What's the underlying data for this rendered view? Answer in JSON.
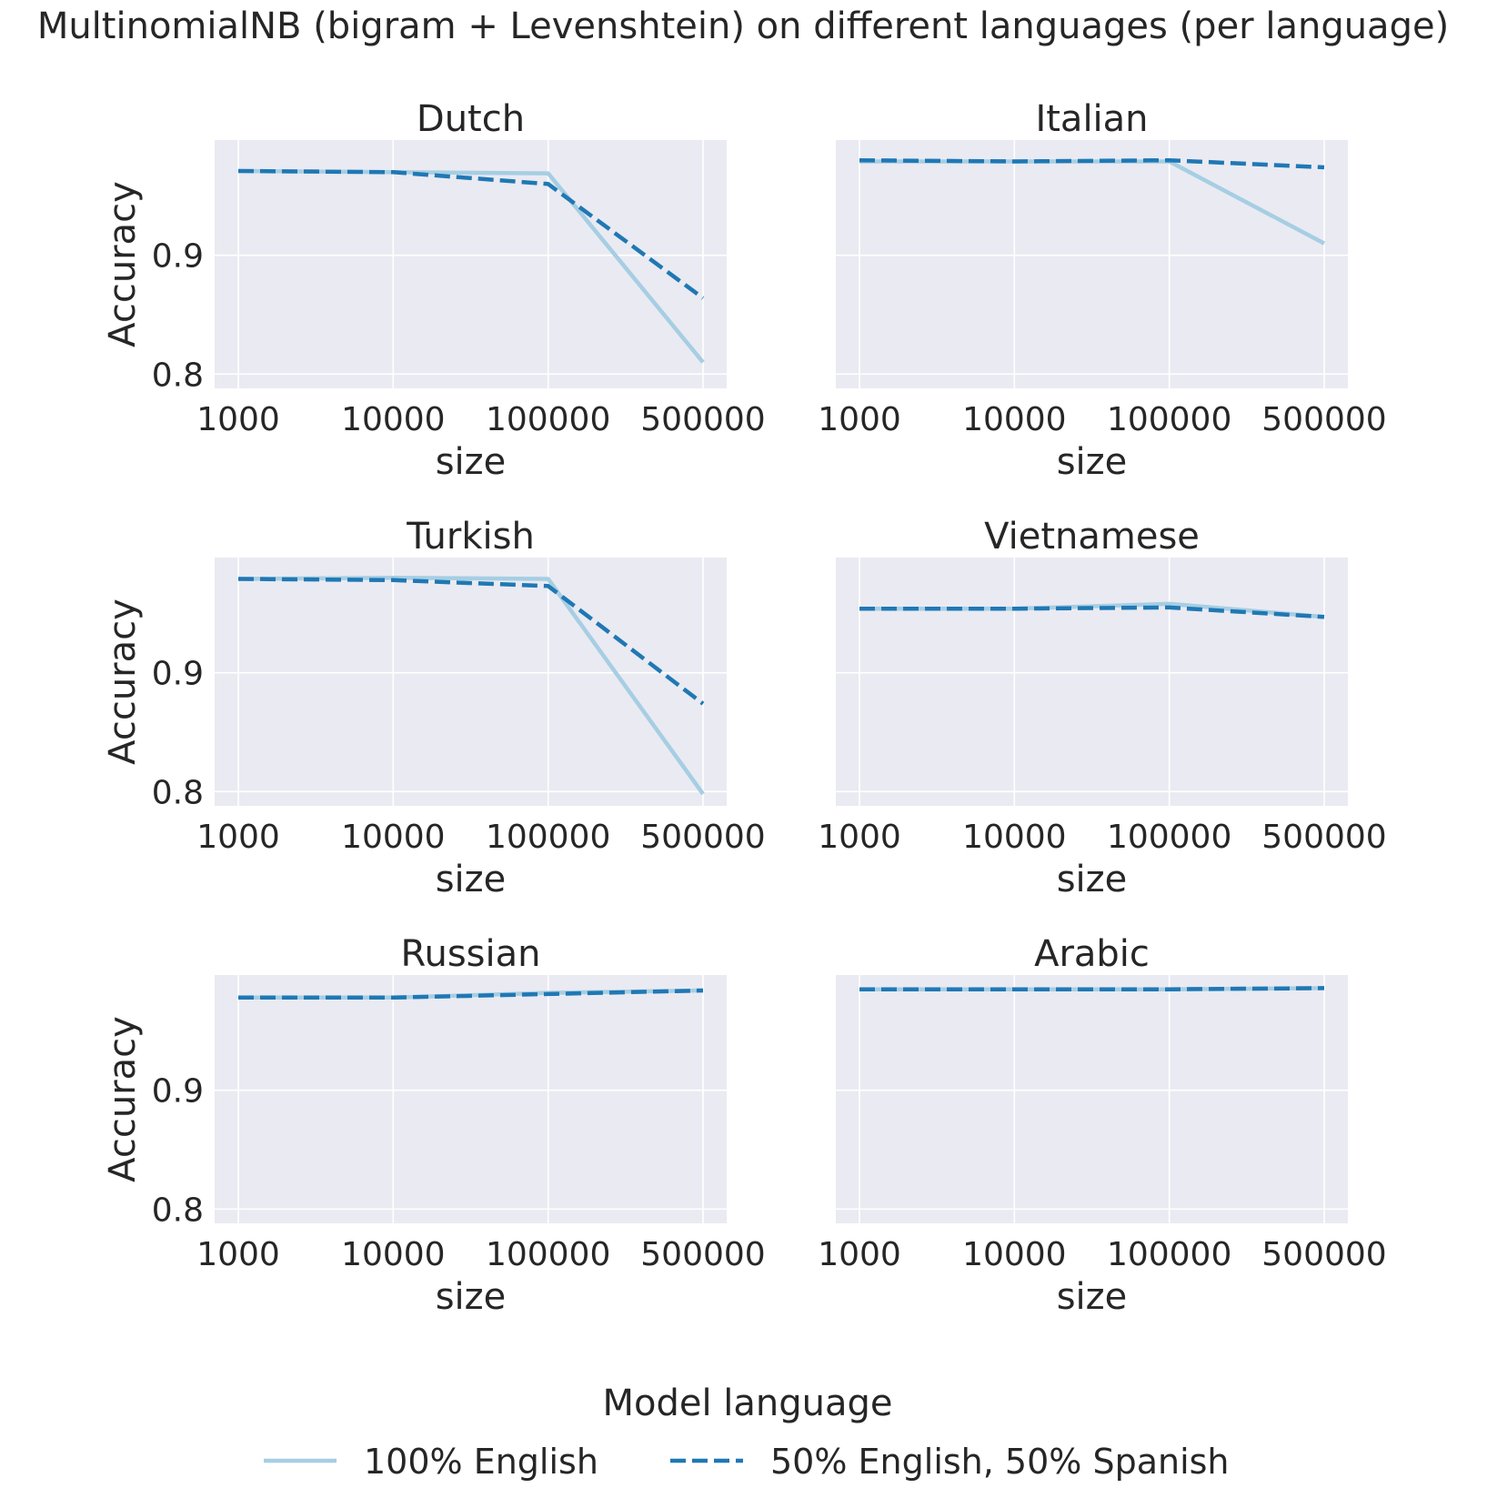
{
  "figure": {
    "title": "MultinomialNB (bigram + Levenshtein) on different languages (per language)",
    "legend_title": "Model language",
    "legend_position": "bottom-center",
    "series_styles": [
      {
        "name": "100% English",
        "color": "#a6cee3",
        "dash": "solid"
      },
      {
        "name": "50% English, 50% Spanish",
        "color": "#1f78b4",
        "dash": "dashed"
      }
    ],
    "background_color": "#eaeaf2",
    "grid_color": "#ffffff"
  },
  "chart_data": [
    {
      "type": "line",
      "title": "Dutch",
      "xlabel": "size",
      "ylabel": "Accuracy",
      "categories": [
        "1000",
        "10000",
        "100000",
        "500000"
      ],
      "ylim": [
        0.788,
        0.997
      ],
      "yticks": [
        0.8,
        0.9
      ],
      "grid": true,
      "series": [
        {
          "name": "100% English",
          "values": [
            0.971,
            0.97,
            0.969,
            0.81
          ]
        },
        {
          "name": "50% English, 50% Spanish",
          "values": [
            0.971,
            0.97,
            0.96,
            0.864
          ]
        }
      ]
    },
    {
      "type": "line",
      "title": "Italian",
      "xlabel": "size",
      "ylabel": "",
      "categories": [
        "1000",
        "10000",
        "100000",
        "500000"
      ],
      "ylim": [
        0.788,
        0.997
      ],
      "yticks": [
        0.8,
        0.9
      ],
      "grid": true,
      "series": [
        {
          "name": "100% English",
          "values": [
            0.979,
            0.979,
            0.979,
            0.91
          ]
        },
        {
          "name": "50% English, 50% Spanish",
          "values": [
            0.98,
            0.979,
            0.98,
            0.974
          ]
        }
      ]
    },
    {
      "type": "line",
      "title": "Turkish",
      "xlabel": "size",
      "ylabel": "Accuracy",
      "categories": [
        "1000",
        "10000",
        "100000",
        "500000"
      ],
      "ylim": [
        0.788,
        0.997
      ],
      "yticks": [
        0.8,
        0.9
      ],
      "grid": true,
      "series": [
        {
          "name": "100% English",
          "values": [
            0.979,
            0.98,
            0.979,
            0.798
          ]
        },
        {
          "name": "50% English, 50% Spanish",
          "values": [
            0.979,
            0.978,
            0.973,
            0.874
          ]
        }
      ]
    },
    {
      "type": "line",
      "title": "Vietnamese",
      "xlabel": "size",
      "ylabel": "",
      "categories": [
        "1000",
        "10000",
        "100000",
        "500000"
      ],
      "ylim": [
        0.788,
        0.997
      ],
      "yticks": [
        0.8,
        0.9
      ],
      "grid": true,
      "series": [
        {
          "name": "100% English",
          "values": [
            0.954,
            0.954,
            0.958,
            0.947
          ]
        },
        {
          "name": "50% English, 50% Spanish",
          "values": [
            0.954,
            0.954,
            0.955,
            0.947
          ]
        }
      ]
    },
    {
      "type": "line",
      "title": "Russian",
      "xlabel": "size",
      "ylabel": "Accuracy",
      "categories": [
        "1000",
        "10000",
        "100000",
        "500000"
      ],
      "ylim": [
        0.788,
        0.997
      ],
      "yticks": [
        0.8,
        0.9
      ],
      "grid": true,
      "series": [
        {
          "name": "100% English",
          "values": [
            0.978,
            0.978,
            0.982,
            0.984
          ]
        },
        {
          "name": "50% English, 50% Spanish",
          "values": [
            0.978,
            0.978,
            0.981,
            0.984
          ]
        }
      ]
    },
    {
      "type": "line",
      "title": "Arabic",
      "xlabel": "size",
      "ylabel": "",
      "categories": [
        "1000",
        "10000",
        "100000",
        "500000"
      ],
      "ylim": [
        0.788,
        0.997
      ],
      "yticks": [
        0.8,
        0.9
      ],
      "grid": true,
      "series": [
        {
          "name": "100% English",
          "values": [
            0.985,
            0.985,
            0.985,
            0.986
          ]
        },
        {
          "name": "50% English, 50% Spanish",
          "values": [
            0.985,
            0.985,
            0.985,
            0.986
          ]
        }
      ]
    }
  ]
}
